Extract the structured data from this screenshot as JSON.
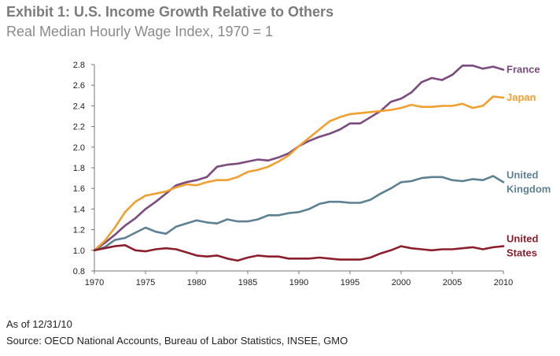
{
  "title": "Exhibit 1: U.S. Income Growth Relative to Others",
  "subtitle": "Real Median Hourly Wage Index, 1970 = 1",
  "footer": {
    "as_of": "As of 12/31/10",
    "source": "Source:  OECD National Accounts, Bureau of Labor Statistics, INSEE, GMO"
  },
  "chart_data": {
    "type": "line",
    "title": "Exhibit 1: U.S. Income Growth Relative to Others",
    "subtitle": "Real Median Hourly Wage Index, 1970 = 1",
    "xlabel": "",
    "ylabel": "",
    "xlim": [
      1970,
      2010
    ],
    "ylim": [
      0.8,
      2.8
    ],
    "xticks": [
      1970,
      1975,
      1980,
      1985,
      1990,
      1995,
      2000,
      2005,
      2010
    ],
    "yticks": [
      0.8,
      1.0,
      1.2,
      1.4,
      1.6,
      1.8,
      2.0,
      2.2,
      2.4,
      2.6,
      2.8
    ],
    "grid": false,
    "legend": "inline labels at right end of lines",
    "x": [
      1970,
      1971,
      1972,
      1973,
      1974,
      1975,
      1976,
      1977,
      1978,
      1979,
      1980,
      1981,
      1982,
      1983,
      1984,
      1985,
      1986,
      1987,
      1988,
      1989,
      1990,
      1991,
      1992,
      1993,
      1994,
      1995,
      1996,
      1997,
      1998,
      1999,
      2000,
      2001,
      2002,
      2003,
      2004,
      2005,
      2006,
      2007,
      2008,
      2009,
      2010
    ],
    "series": [
      {
        "name": "France",
        "label_lines": [
          "France"
        ],
        "color": "#7b4a7e",
        "values": [
          1.0,
          1.07,
          1.15,
          1.24,
          1.31,
          1.4,
          1.47,
          1.55,
          1.63,
          1.66,
          1.68,
          1.71,
          1.81,
          1.83,
          1.84,
          1.86,
          1.88,
          1.87,
          1.9,
          1.94,
          2.01,
          2.06,
          2.1,
          2.13,
          2.17,
          2.23,
          2.23,
          2.29,
          2.35,
          2.44,
          2.47,
          2.53,
          2.63,
          2.67,
          2.65,
          2.7,
          2.79,
          2.79,
          2.76,
          2.78,
          2.75
        ]
      },
      {
        "name": "Japan",
        "label_lines": [
          "Japan"
        ],
        "color": "#f0a030",
        "values": [
          1.0,
          1.09,
          1.22,
          1.37,
          1.47,
          1.53,
          1.55,
          1.57,
          1.61,
          1.64,
          1.63,
          1.66,
          1.68,
          1.68,
          1.71,
          1.76,
          1.78,
          1.81,
          1.86,
          1.92,
          2.01,
          2.09,
          2.17,
          2.25,
          2.29,
          2.32,
          2.33,
          2.34,
          2.35,
          2.36,
          2.38,
          2.41,
          2.39,
          2.39,
          2.4,
          2.4,
          2.42,
          2.38,
          2.4,
          2.49,
          2.48
        ]
      },
      {
        "name": "United Kingdom",
        "label_lines": [
          "United",
          "Kingdom"
        ],
        "color": "#5d8192",
        "values": [
          1.0,
          1.03,
          1.1,
          1.12,
          1.17,
          1.22,
          1.18,
          1.16,
          1.23,
          1.26,
          1.29,
          1.27,
          1.26,
          1.3,
          1.28,
          1.28,
          1.3,
          1.34,
          1.34,
          1.36,
          1.37,
          1.4,
          1.45,
          1.47,
          1.47,
          1.46,
          1.46,
          1.49,
          1.55,
          1.6,
          1.66,
          1.67,
          1.7,
          1.71,
          1.71,
          1.68,
          1.67,
          1.69,
          1.68,
          1.72,
          1.66
        ]
      },
      {
        "name": "United States",
        "label_lines": [
          "United",
          "States"
        ],
        "color": "#8b1f2c",
        "values": [
          1.0,
          1.02,
          1.04,
          1.05,
          1.0,
          0.99,
          1.01,
          1.02,
          1.01,
          0.98,
          0.95,
          0.94,
          0.95,
          0.92,
          0.9,
          0.93,
          0.95,
          0.94,
          0.94,
          0.92,
          0.92,
          0.92,
          0.93,
          0.92,
          0.91,
          0.91,
          0.91,
          0.93,
          0.97,
          1.0,
          1.04,
          1.02,
          1.01,
          1.0,
          1.01,
          1.01,
          1.02,
          1.03,
          1.01,
          1.03,
          1.04
        ]
      }
    ]
  }
}
